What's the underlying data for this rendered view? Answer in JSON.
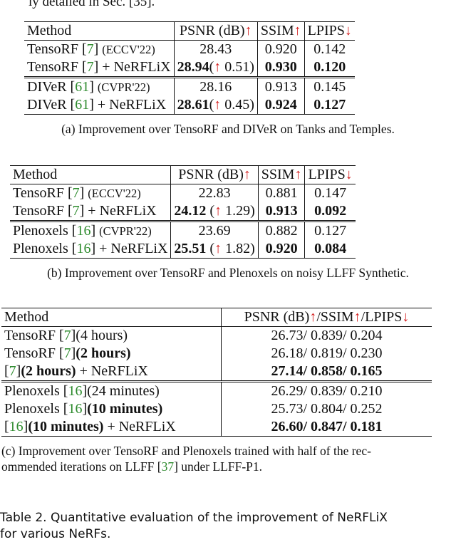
{
  "top_fragment": "ly detailed in Sec. [35].",
  "table_a": {
    "header": {
      "method": "Method",
      "psnr": "PSNR (dB)",
      "ssim": "SSIM",
      "lpips": "LPIPS"
    },
    "rows": [
      {
        "name": "TensoRF",
        "cite": "7",
        "venue": "(ECCV'22)",
        "suffix": "",
        "psnr": "28.43",
        "delta": "",
        "ssim": "0.920",
        "lpips": "0.142",
        "bold": false
      },
      {
        "name": "TensoRF",
        "cite": "7",
        "venue": "",
        "suffix": "+ NeRFLiX",
        "psnr": "28.94",
        "delta": "0.51)",
        "ssim": "0.930",
        "lpips": "0.120",
        "bold": true
      },
      {
        "name": "DIVeR",
        "cite": "61",
        "venue": "(CVPR'22)",
        "suffix": "",
        "psnr": "28.16",
        "delta": "",
        "ssim": "0.913",
        "lpips": "0.145",
        "bold": false
      },
      {
        "name": "DIVeR",
        "cite": "61",
        "venue": "",
        "suffix": "+ NeRFLiX",
        "psnr": "28.61",
        "delta": "0.45)",
        "ssim": "0.924",
        "lpips": "0.127",
        "bold": true
      }
    ],
    "caption": "(a) Improvement over TensoRF and DIVeR on Tanks and Temples."
  },
  "table_b": {
    "header": {
      "method": "Method",
      "psnr": "PSNR (dB)",
      "ssim": "SSIM",
      "lpips": "LPIPS"
    },
    "rows": [
      {
        "name": "TensoRF",
        "cite": "7",
        "venue": "(ECCV'22)",
        "suffix": "",
        "psnr": "22.83",
        "delta": "",
        "ssim": "0.881",
        "lpips": "0.147",
        "bold": false
      },
      {
        "name": "TensoRF",
        "cite": "7",
        "venue": "",
        "suffix": "+ NeRFLiX",
        "psnr": "24.12",
        "delta": "1.29)",
        "ssim": "0.913",
        "lpips": "0.092",
        "bold": true
      },
      {
        "name": "Plenoxels",
        "cite": "16",
        "venue": "(CVPR'22)",
        "suffix": "",
        "psnr": "23.69",
        "delta": "",
        "ssim": "0.882",
        "lpips": "0.127",
        "bold": false
      },
      {
        "name": "Plenoxels",
        "cite": "16",
        "venue": "",
        "suffix": "+ NeRFLiX",
        "psnr": "25.51",
        "delta": "1.82)",
        "ssim": "0.920",
        "lpips": "0.084",
        "bold": true
      }
    ],
    "caption": "(b) Improvement over TensoRF and Plenoxels on noisy LLFF Synthetic."
  },
  "table_c": {
    "header": {
      "method": "Method",
      "metrics_psnr": "PSNR (dB)",
      "metrics_ssim": "/SSIM",
      "metrics_lpips": "/LPIPS"
    },
    "rows": [
      {
        "prefix": "TensoRF ",
        "cite": "7",
        "note": "(4 hours)",
        "note_bold": false,
        "suffix": "",
        "value": "26.73/ 0.839/ 0.204",
        "bold": false
      },
      {
        "prefix": "TensoRF ",
        "cite": "7",
        "note": "(2 hours)",
        "note_bold": true,
        "suffix": "",
        "value": "26.18/ 0.819/ 0.230",
        "bold": false
      },
      {
        "prefix": "",
        "cite": "7",
        "note": "(2 hours)",
        "note_bold": true,
        "suffix": " + NeRFLiX",
        "value": "27.14/ 0.858/ 0.165",
        "bold": true
      },
      {
        "prefix": "Plenoxels ",
        "cite": "16",
        "note": "(24 minutes)",
        "note_bold": false,
        "suffix": "",
        "value": "26.29/ 0.839/ 0.210",
        "bold": false
      },
      {
        "prefix": "Plenoxels ",
        "cite": "16",
        "note": "(10 minutes)",
        "note_bold": true,
        "suffix": "",
        "value": "25.73/ 0.804/ 0.252",
        "bold": false
      },
      {
        "prefix": "",
        "cite": "16",
        "note": "(10 minutes)",
        "note_bold": true,
        "suffix": " + NeRFLiX",
        "value": "26.60/ 0.847/ 0.181",
        "bold": true
      }
    ],
    "caption_line1": "(c) Improvement over TensoRF and Plenoxels trained with half of the rec-",
    "caption_line2_pre": "ommended iterations on LLFF ",
    "caption_cite": "37",
    "caption_line2_post": " under LLFF-P1."
  },
  "table_caption": {
    "line1": "Table 2. Quantitative evaluation of the improvement of NeRFLiX",
    "line2": "for various NeRFs."
  },
  "arrows": {
    "up": "↑",
    "down": "↓"
  }
}
